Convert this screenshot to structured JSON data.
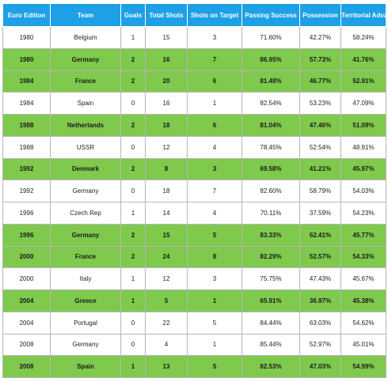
{
  "colors": {
    "header_bg": "#1ea0e6",
    "winner_row_bg": "#7fc94d",
    "plain_row_bg": "#ffffff"
  },
  "table": {
    "headers": [
      "Euro Edition",
      "Team",
      "Goals",
      "Total Shots",
      "Shots on Target",
      "Passing Success",
      "Possession",
      "Territorial Advantage"
    ],
    "rows": [
      {
        "highlight": false,
        "cells": [
          "1980",
          "Belgium",
          "1",
          "15",
          "3",
          "71.60%",
          "42.27%",
          "58.24%"
        ]
      },
      {
        "highlight": true,
        "cells": [
          "1980",
          "Germany",
          "2",
          "16",
          "7",
          "86.95%",
          "57.73%",
          "41.76%"
        ]
      },
      {
        "highlight": true,
        "cells": [
          "1984",
          "France",
          "2",
          "20",
          "6",
          "81.48%",
          "46.77%",
          "52.91%"
        ]
      },
      {
        "highlight": false,
        "cells": [
          "1984",
          "Spain",
          "0",
          "16",
          "1",
          "82.54%",
          "53.23%",
          "47.09%"
        ]
      },
      {
        "highlight": true,
        "cells": [
          "1988",
          "Netherlands",
          "2",
          "18",
          "6",
          "81.04%",
          "47.46%",
          "51.09%"
        ]
      },
      {
        "highlight": false,
        "cells": [
          "1988",
          "USSR",
          "0",
          "12",
          "4",
          "78.45%",
          "52.54%",
          "48.91%"
        ]
      },
      {
        "highlight": true,
        "cells": [
          "1992",
          "Denmark",
          "2",
          "8",
          "3",
          "69.58%",
          "41.21%",
          "45.97%"
        ]
      },
      {
        "highlight": false,
        "cells": [
          "1992",
          "Germany",
          "0",
          "18",
          "7",
          "82.60%",
          "58.79%",
          "54.03%"
        ]
      },
      {
        "highlight": false,
        "cells": [
          "1996",
          "Czech Rep",
          "1",
          "14",
          "4",
          "70.11%",
          "37.59%",
          "54.23%"
        ]
      },
      {
        "highlight": true,
        "cells": [
          "1996",
          "Germany",
          "2",
          "15",
          "5",
          "83.33%",
          "62.41%",
          "45.77%"
        ]
      },
      {
        "highlight": true,
        "cells": [
          "2000",
          "France",
          "2",
          "24",
          "8",
          "82.29%",
          "52.57%",
          "54.33%"
        ]
      },
      {
        "highlight": false,
        "cells": [
          "2000",
          "Italy",
          "1",
          "12",
          "3",
          "75.75%",
          "47.43%",
          "45.67%"
        ]
      },
      {
        "highlight": true,
        "cells": [
          "2004",
          "Greece",
          "1",
          "5",
          "1",
          "65.91%",
          "36.97%",
          "45.38%"
        ]
      },
      {
        "highlight": false,
        "cells": [
          "2004",
          "Portugal",
          "0",
          "22",
          "5",
          "84.44%",
          "63.03%",
          "54.62%"
        ]
      },
      {
        "highlight": false,
        "cells": [
          "2008",
          "Germany",
          "0",
          "4",
          "1",
          "85.44%",
          "52.97%",
          "45.01%"
        ]
      },
      {
        "highlight": true,
        "cells": [
          "2008",
          "Spain",
          "1",
          "13",
          "5",
          "82.53%",
          "47.03%",
          "54.99%"
        ]
      }
    ]
  }
}
